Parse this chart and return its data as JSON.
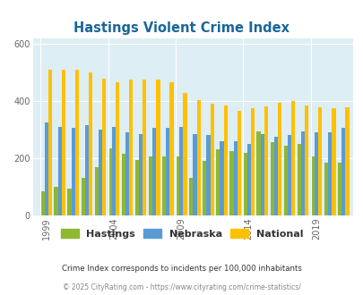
{
  "title": "Hastings Violent Crime Index",
  "years": [
    1999,
    2000,
    2001,
    2002,
    2003,
    2004,
    2005,
    2006,
    2007,
    2008,
    2009,
    2010,
    2011,
    2012,
    2013,
    2014,
    2015,
    2016,
    2017,
    2018,
    2019,
    2020,
    2021
  ],
  "hastings": [
    85,
    100,
    95,
    130,
    170,
    235,
    215,
    195,
    205,
    205,
    205,
    130,
    190,
    230,
    225,
    220,
    295,
    255,
    245,
    250,
    205,
    185,
    185
  ],
  "nebraska": [
    325,
    310,
    305,
    315,
    300,
    310,
    290,
    285,
    305,
    308,
    310,
    285,
    280,
    260,
    260,
    250,
    285,
    275,
    280,
    295,
    290,
    290,
    305
  ],
  "national": [
    510,
    510,
    510,
    500,
    480,
    465,
    475,
    477,
    477,
    465,
    430,
    405,
    390,
    385,
    365,
    375,
    383,
    395,
    400,
    385,
    380,
    375,
    380
  ],
  "hastings_color": "#8db832",
  "nebraska_color": "#5b9bd5",
  "national_color": "#ffc000",
  "bg_color": "#deeef5",
  "title_color": "#1a6699",
  "ylim": [
    0,
    620
  ],
  "yticks": [
    0,
    200,
    400,
    600
  ],
  "xtick_years": [
    1999,
    2004,
    2009,
    2014,
    2019
  ],
  "footnote1": "Crime Index corresponds to incidents per 100,000 inhabitants",
  "footnote2": "© 2025 CityRating.com - https://www.cityrating.com/crime-statistics/",
  "bar_width": 0.28,
  "legend_labels": [
    "Hastings",
    "Nebraska",
    "National"
  ]
}
